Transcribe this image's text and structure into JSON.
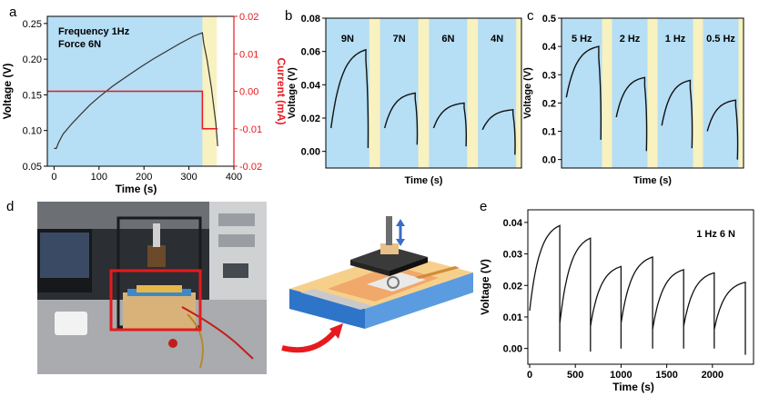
{
  "panel_letters": [
    "a",
    "b",
    "c",
    "d",
    "e"
  ],
  "colors": {
    "blue_bg": "#b6def4",
    "yellow_bg": "#f8f1c0",
    "current_red": "#e8191e",
    "trace_black": "#111111",
    "arrow_red": "#e8191e",
    "device_blue": "#2e74c9",
    "device_top": "#f6d08b"
  },
  "chart_data": [
    {
      "panel": "a",
      "type": "line",
      "annotation": [
        "Frequency 1Hz",
        "Force 6N"
      ],
      "xlabel": "Time (s)",
      "ylabel": "Voltage (V)",
      "y2label": "Current (mA)",
      "xlim": [
        -15,
        400
      ],
      "ylim": [
        0.05,
        0.26
      ],
      "y2lim": [
        -0.02,
        0.02
      ],
      "xticks": [
        0,
        100,
        200,
        300,
        400
      ],
      "yticks": [
        0.05,
        0.1,
        0.15,
        0.2,
        0.25
      ],
      "y2ticks": [
        -0.02,
        -0.01,
        0.0,
        0.01,
        0.02
      ],
      "shade_regions": [
        {
          "from": -15,
          "to": 330,
          "fill": "blue"
        },
        {
          "from": 330,
          "to": 362,
          "fill": "yellow"
        }
      ],
      "series": [
        {
          "axis": "left",
          "x": [
            0,
            5,
            10,
            20,
            40,
            60,
            80,
            100,
            130,
            160,
            190,
            220,
            250,
            280,
            310,
            330,
            333,
            340,
            350,
            360,
            364
          ],
          "y": [
            0.075,
            0.075,
            0.083,
            0.095,
            0.11,
            0.123,
            0.136,
            0.147,
            0.162,
            0.175,
            0.188,
            0.2,
            0.211,
            0.222,
            0.232,
            0.237,
            0.222,
            0.2,
            0.16,
            0.11,
            0.078
          ]
        },
        {
          "axis": "right",
          "x": [
            -15,
            330,
            330,
            364
          ],
          "y": [
            0.0,
            0.0,
            -0.01,
            -0.01
          ]
        }
      ]
    },
    {
      "panel": "b",
      "type": "line",
      "xlabel": "Time (s)",
      "ylabel": "Voltage (V)",
      "ylim": [
        -0.01,
        0.08
      ],
      "yticks": [
        0.0,
        0.02,
        0.04,
        0.06,
        0.08
      ],
      "segment_labels": [
        "9N",
        "7N",
        "6N",
        "4N"
      ],
      "segments": [
        {
          "start": 0.014,
          "peak": 0.061,
          "end": 0.002
        },
        {
          "start": 0.014,
          "peak": 0.035,
          "end": 0.004
        },
        {
          "start": 0.014,
          "peak": 0.029,
          "end": 0.003
        },
        {
          "start": 0.013,
          "peak": 0.025,
          "end": -0.002
        }
      ]
    },
    {
      "panel": "c",
      "type": "line",
      "xlabel": "Time (s)",
      "ylabel": "Voltage (V)",
      "ylim": [
        -0.03,
        0.5
      ],
      "yticks": [
        0.0,
        0.1,
        0.2,
        0.3,
        0.4,
        0.5
      ],
      "segment_labels": [
        "5 Hz",
        "2 Hz",
        "1 Hz",
        "0.5 Hz"
      ],
      "segments": [
        {
          "start": 0.22,
          "peak": 0.4,
          "end": 0.07
        },
        {
          "start": 0.15,
          "peak": 0.29,
          "end": 0.03
        },
        {
          "start": 0.12,
          "peak": 0.28,
          "end": 0.04
        },
        {
          "start": 0.1,
          "peak": 0.21,
          "end": 0.0
        }
      ]
    },
    {
      "panel": "e",
      "type": "line",
      "annotation": "1 Hz  6 N",
      "xlabel": "Time (s)",
      "ylabel": "Voltage (V)",
      "xlim": [
        -20,
        2450
      ],
      "ylim": [
        -0.005,
        0.044
      ],
      "xticks": [
        0,
        500,
        1000,
        1500,
        2000
      ],
      "yticks": [
        0.0,
        0.01,
        0.02,
        0.03,
        0.04
      ],
      "cycles": [
        {
          "t0": 0,
          "t1": 330,
          "start": 0.012,
          "peak": 0.039,
          "drop": -0.001
        },
        {
          "t0": 330,
          "t1": 665,
          "start": 0.008,
          "peak": 0.035,
          "drop": -0.001
        },
        {
          "t0": 665,
          "t1": 1000,
          "start": 0.007,
          "peak": 0.026,
          "drop": 0.0
        },
        {
          "t0": 1000,
          "t1": 1345,
          "start": 0.008,
          "peak": 0.029,
          "drop": 0.0
        },
        {
          "t0": 1345,
          "t1": 1685,
          "start": 0.006,
          "peak": 0.025,
          "drop": 0.0
        },
        {
          "t0": 1685,
          "t1": 2020,
          "start": 0.007,
          "peak": 0.024,
          "drop": 0.0
        },
        {
          "t0": 2020,
          "t1": 2360,
          "start": 0.006,
          "peak": 0.021,
          "drop": -0.002
        }
      ]
    }
  ]
}
